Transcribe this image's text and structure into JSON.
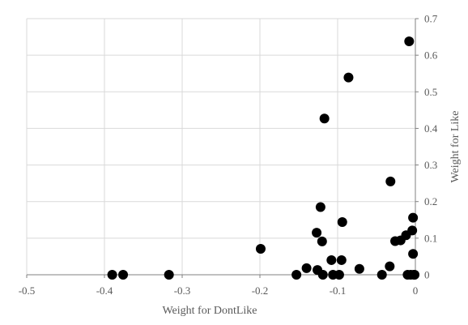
{
  "chart_data": {
    "type": "scatter",
    "xlabel": "Weight for DontLike",
    "ylabel": "Weight for Like",
    "xlim": [
      -0.5,
      0
    ],
    "ylim": [
      0,
      0.7
    ],
    "x_ticks": [
      -0.5,
      -0.4,
      -0.3,
      -0.2,
      -0.1,
      0
    ],
    "x_tick_labels": [
      "-0.5",
      "-0.4",
      "-0.3",
      "-0.2",
      "-0.1",
      "0"
    ],
    "y_ticks": [
      0,
      0.1,
      0.2,
      0.3,
      0.4,
      0.5,
      0.6,
      0.7
    ],
    "y_tick_labels": [
      "0",
      "0.1",
      "0.2",
      "0.3",
      "0.4",
      "0.5",
      "0.6",
      "0.7"
    ],
    "y_axis_side": "right",
    "grid": true,
    "legend": "none",
    "marker_color": "#000000",
    "points": [
      {
        "x": -0.39,
        "y": 0.0
      },
      {
        "x": -0.376,
        "y": 0.0
      },
      {
        "x": -0.317,
        "y": 0.0
      },
      {
        "x": -0.199,
        "y": 0.071
      },
      {
        "x": -0.153,
        "y": 0.0
      },
      {
        "x": -0.14,
        "y": 0.018
      },
      {
        "x": -0.127,
        "y": 0.115
      },
      {
        "x": -0.126,
        "y": 0.013
      },
      {
        "x": -0.122,
        "y": 0.185
      },
      {
        "x": -0.12,
        "y": 0.091
      },
      {
        "x": -0.119,
        "y": 0.0
      },
      {
        "x": -0.117,
        "y": 0.427
      },
      {
        "x": -0.108,
        "y": 0.04
      },
      {
        "x": -0.106,
        "y": 0.0
      },
      {
        "x": -0.098,
        "y": 0.0
      },
      {
        "x": -0.095,
        "y": 0.04
      },
      {
        "x": -0.094,
        "y": 0.144
      },
      {
        "x": -0.086,
        "y": 0.539
      },
      {
        "x": -0.072,
        "y": 0.016
      },
      {
        "x": -0.043,
        "y": 0.0
      },
      {
        "x": -0.033,
        "y": 0.023
      },
      {
        "x": -0.032,
        "y": 0.255
      },
      {
        "x": -0.026,
        "y": 0.092
      },
      {
        "x": -0.019,
        "y": 0.094
      },
      {
        "x": -0.012,
        "y": 0.108
      },
      {
        "x": -0.01,
        "y": 0.0
      },
      {
        "x": -0.008,
        "y": 0.638
      },
      {
        "x": -0.006,
        "y": 0.0
      },
      {
        "x": -0.004,
        "y": 0.121
      },
      {
        "x": -0.003,
        "y": 0.156
      },
      {
        "x": -0.003,
        "y": 0.057
      },
      {
        "x": -0.002,
        "y": 0.0
      },
      {
        "x": -0.001,
        "y": 0.0
      }
    ]
  }
}
